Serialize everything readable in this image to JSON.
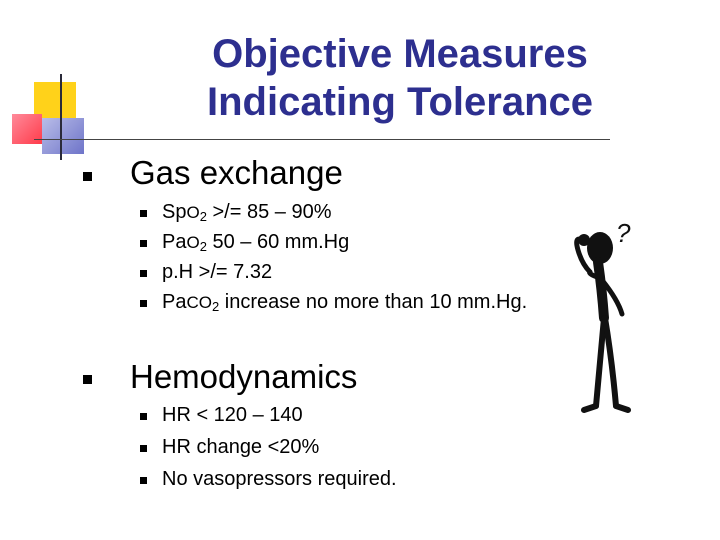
{
  "slide": {
    "title_line1": "Objective Measures",
    "title_line2": "Indicating Tolerance",
    "sections": [
      {
        "heading": "Gas exchange",
        "items": [
          {
            "prefix": "Sp",
            "o": "O",
            "sub": "2",
            "rest": " >/= 85 – 90%"
          },
          {
            "prefix": "Pa",
            "o": "O",
            "sub": "2",
            "rest": " 50 – 60 mm.Hg"
          },
          {
            "text": "p.H >/= 7.32"
          },
          {
            "prefix": "Pa",
            "o": "CO",
            "sub": "2",
            "rest": " increase no more than 10 mm.Hg."
          }
        ]
      },
      {
        "heading": "Hemodynamics",
        "items": [
          {
            "text": "HR < 120 – 140"
          },
          {
            "text": "HR change <20%"
          },
          {
            "text": "No vasopressors required."
          }
        ]
      }
    ],
    "figure_mark": "?",
    "colors": {
      "title": "#2d2f8f",
      "deco_yellow": "#ffd21a",
      "deco_red": "#ff3b4a",
      "deco_blue": "#2b33a8"
    }
  }
}
